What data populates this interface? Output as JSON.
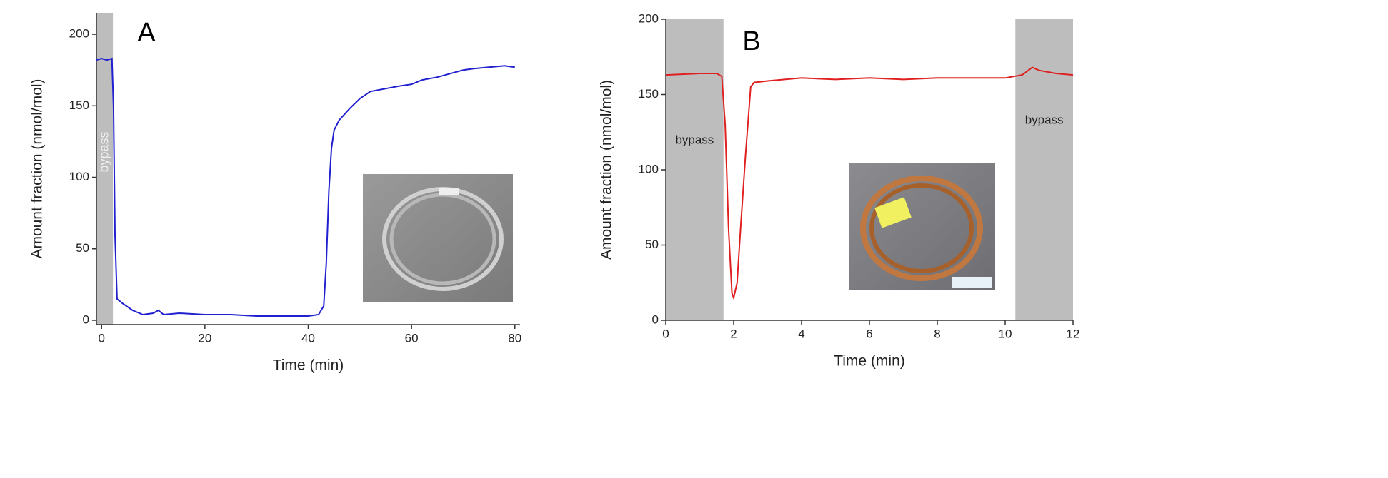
{
  "chart_data": [
    {
      "type": "line",
      "panel_label": "A",
      "x_label": "Time (min)",
      "y_label": "Amount fraction (nmol/mol)",
      "xlim": [
        -1,
        81
      ],
      "ylim": [
        -3,
        215
      ],
      "xticks": [
        0,
        20,
        40,
        60,
        80
      ],
      "yticks": [
        0,
        50,
        100,
        150,
        200
      ],
      "shaded_regions": [
        {
          "x": [
            -1,
            2.2
          ],
          "label": "bypass",
          "color": "#bdbdbd"
        }
      ],
      "x": [
        -1,
        0,
        1,
        2,
        2.3,
        2.6,
        3,
        4,
        6,
        8,
        10,
        11,
        12,
        15,
        20,
        25,
        30,
        35,
        40,
        42,
        43,
        43.5,
        44,
        44.5,
        45,
        46,
        48,
        50,
        52,
        55,
        58,
        60,
        62,
        65,
        68,
        70,
        72,
        75,
        78,
        80
      ],
      "series": [
        {
          "color": "#2020d0",
          "values": [
            182,
            183,
            182,
            183,
            150,
            60,
            15,
            12,
            7,
            4,
            5,
            7,
            4,
            5,
            4,
            4,
            3,
            3,
            3,
            4,
            10,
            40,
            90,
            120,
            133,
            140,
            148,
            155,
            160,
            162,
            164,
            165,
            168,
            170,
            173,
            175,
            176,
            177,
            178,
            177
          ]
        }
      ]
    },
    {
      "type": "line",
      "panel_label": "B",
      "x_label": "Time (min)",
      "y_label": "Amount fraction (nmol/mol)",
      "xlim": [
        0,
        12
      ],
      "ylim": [
        0,
        200
      ],
      "xticks": [
        0,
        2,
        4,
        6,
        8,
        10,
        12
      ],
      "yticks": [
        0,
        50,
        100,
        150,
        200
      ],
      "shaded_regions": [
        {
          "x": [
            0,
            1.7
          ],
          "label": "bypass",
          "color": "#bdbdbd"
        },
        {
          "x": [
            10.3,
            12
          ],
          "label": "bypass",
          "color": "#bdbdbd"
        }
      ],
      "x": [
        0,
        1,
        1.5,
        1.65,
        1.75,
        1.85,
        1.95,
        2.0,
        2.1,
        2.2,
        2.35,
        2.5,
        2.6,
        3,
        4,
        5,
        6,
        7,
        8,
        9,
        10,
        10.5,
        10.8,
        11,
        11.5,
        12
      ],
      "series": [
        {
          "color": "#e02020",
          "values": [
            163,
            164,
            164,
            162,
            130,
            60,
            18,
            15,
            25,
            60,
            110,
            155,
            158,
            159,
            161,
            160,
            161,
            160,
            161,
            161,
            161,
            163,
            168,
            166,
            164,
            163
          ]
        }
      ]
    }
  ]
}
